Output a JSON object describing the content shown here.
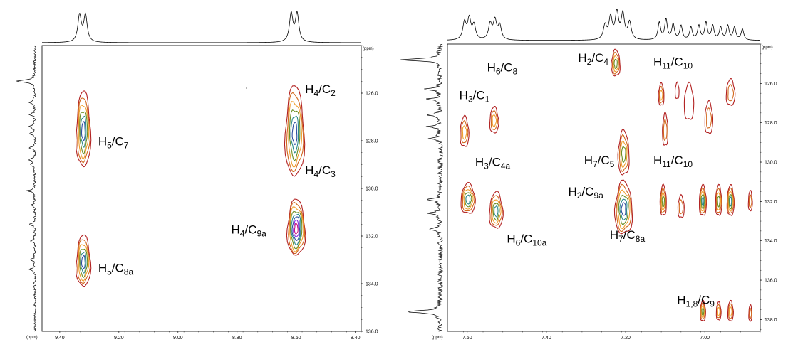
{
  "chart_data": [
    {
      "type": "contour",
      "unit_label": "(ppm)",
      "xlim": [
        9.46,
        8.38
      ],
      "ylim": [
        124.0,
        136.0
      ],
      "x_ticks": [
        {
          "v": 9.4,
          "label": "9.40"
        },
        {
          "v": 9.2,
          "label": "9.20"
        },
        {
          "v": 9.0,
          "label": "9.00"
        },
        {
          "v": 8.8,
          "label": "8.80"
        },
        {
          "v": 8.6,
          "label": "8.60"
        },
        {
          "v": 8.4,
          "label": "8.40"
        }
      ],
      "y_ticks": [
        {
          "v": 126,
          "label": "126.0"
        },
        {
          "v": 128,
          "label": "128.0"
        },
        {
          "v": 130,
          "label": "130.0"
        },
        {
          "v": 132,
          "label": "132.0"
        },
        {
          "v": 134,
          "label": "134.0"
        },
        {
          "v": 136,
          "label": "136.0"
        }
      ],
      "cross_peaks": [
        {
          "h": 9.32,
          "c": 127.6,
          "sh": 0.024,
          "sc": 1.55,
          "levels": 6
        },
        {
          "h": 9.32,
          "c": 133.1,
          "sh": 0.024,
          "sc": 1.05,
          "levels": 6
        },
        {
          "h": 8.605,
          "c": 127.7,
          "sh": 0.032,
          "sc": 1.85,
          "levels": 6
        },
        {
          "h": 8.6,
          "c": 131.7,
          "sh": 0.03,
          "sc": 1.15,
          "levels": 8
        }
      ],
      "labels": [
        {
          "main": "H",
          "s1": "5",
          "mid": "/C",
          "s2": "7",
          "h": 9.27,
          "c": 128.2
        },
        {
          "main": "H",
          "s1": "4",
          "mid": "/C",
          "s2": "2",
          "h": 8.57,
          "c": 126.0
        },
        {
          "main": "H",
          "s1": "4",
          "mid": "/C",
          "s2": "3",
          "h": 8.57,
          "c": 129.4
        },
        {
          "main": "H",
          "s1": "4",
          "mid": "/C",
          "s2": "9a",
          "h": 8.82,
          "c": 131.9
        },
        {
          "main": "H",
          "s1": "5",
          "mid": "/C",
          "s2": "8a",
          "h": 9.27,
          "c": 133.5
        }
      ],
      "top_projection": [
        {
          "x": 9.333,
          "h": 0.85,
          "w": 0.007
        },
        {
          "x": 9.313,
          "h": 0.85,
          "w": 0.007
        },
        {
          "x": 8.617,
          "h": 0.9,
          "w": 0.007
        },
        {
          "x": 8.597,
          "h": 0.9,
          "w": 0.007
        }
      ],
      "side_projection": [
        {
          "c": 125.5,
          "h": 0.9,
          "w": 0.06
        },
        {
          "c": 126.4,
          "h": 0.3,
          "w": 0.05
        },
        {
          "c": 126.9,
          "h": 0.25,
          "w": 0.05
        },
        {
          "c": 127.4,
          "h": 0.35,
          "w": 0.05
        },
        {
          "c": 127.7,
          "h": 0.3,
          "w": 0.05
        },
        {
          "c": 128.3,
          "h": 0.25,
          "w": 0.05
        },
        {
          "c": 128.8,
          "h": 0.3,
          "w": 0.05
        },
        {
          "c": 129.0,
          "h": 0.2,
          "w": 0.05
        },
        {
          "c": 130.1,
          "h": 0.35,
          "w": 0.06
        },
        {
          "c": 130.7,
          "h": 0.2,
          "w": 0.05
        },
        {
          "c": 131.5,
          "h": 0.25,
          "w": 0.05
        },
        {
          "c": 132.2,
          "h": 0.2,
          "w": 0.05
        },
        {
          "c": 133.0,
          "h": 0.25,
          "w": 0.05
        },
        {
          "c": 133.4,
          "h": 0.3,
          "w": 0.05
        }
      ]
    },
    {
      "type": "contour",
      "unit_label": "(ppm)",
      "xlim": [
        7.65,
        6.86
      ],
      "ylim": [
        124.0,
        138.6
      ],
      "x_ticks": [
        {
          "v": 7.6,
          "label": "7.60"
        },
        {
          "v": 7.4,
          "label": "7.40"
        },
        {
          "v": 7.2,
          "label": "7.20"
        },
        {
          "v": 7.0,
          "label": "7.00"
        }
      ],
      "y_ticks": [
        {
          "v": 126,
          "label": "126.0"
        },
        {
          "v": 128,
          "label": "128.0"
        },
        {
          "v": 130,
          "label": "130.0"
        },
        {
          "v": 132,
          "label": "132.0"
        },
        {
          "v": 134,
          "label": "134.0"
        },
        {
          "v": 136,
          "label": "136.0"
        },
        {
          "v": 138,
          "label": "138.0"
        }
      ],
      "cross_peaks": [
        {
          "h": 7.225,
          "c": 125.0,
          "sh": 0.011,
          "sc": 0.65,
          "levels": 4
        },
        {
          "h": 7.607,
          "c": 128.5,
          "sh": 0.011,
          "sc": 0.75,
          "levels": 3
        },
        {
          "h": 7.532,
          "c": 127.9,
          "sh": 0.011,
          "sc": 0.65,
          "levels": 3
        },
        {
          "h": 7.598,
          "c": 131.9,
          "sh": 0.018,
          "sc": 0.75,
          "levels": 5
        },
        {
          "h": 7.527,
          "c": 132.5,
          "sh": 0.017,
          "sc": 0.9,
          "levels": 5
        },
        {
          "h": 7.205,
          "c": 129.6,
          "sh": 0.014,
          "sc": 1.1,
          "levels": 4
        },
        {
          "h": 7.205,
          "c": 132.4,
          "sh": 0.022,
          "sc": 1.3,
          "levels": 6
        },
        {
          "h": 7.11,
          "c": 126.6,
          "sh": 0.007,
          "sc": 0.55,
          "levels": 3
        },
        {
          "h": 7.07,
          "c": 126.4,
          "sh": 0.005,
          "sc": 0.4,
          "levels": 1
        },
        {
          "h": 7.04,
          "c": 127.0,
          "sh": 0.012,
          "sc": 0.9,
          "levels": 1
        },
        {
          "h": 7.1,
          "c": 128.4,
          "sh": 0.007,
          "sc": 0.8,
          "levels": 2
        },
        {
          "h": 6.99,
          "c": 127.8,
          "sh": 0.01,
          "sc": 0.8,
          "levels": 2
        },
        {
          "h": 6.935,
          "c": 126.5,
          "sh": 0.011,
          "sc": 0.65,
          "levels": 2
        },
        {
          "h": 7.105,
          "c": 132.0,
          "sh": 0.008,
          "sc": 0.75,
          "levels": 4
        },
        {
          "h": 7.06,
          "c": 132.3,
          "sh": 0.008,
          "sc": 0.55,
          "levels": 2
        },
        {
          "h": 7.005,
          "c": 132.0,
          "sh": 0.009,
          "sc": 0.75,
          "levels": 5
        },
        {
          "h": 6.965,
          "c": 132.0,
          "sh": 0.008,
          "sc": 0.75,
          "levels": 4
        },
        {
          "h": 6.935,
          "c": 132.0,
          "sh": 0.009,
          "sc": 0.75,
          "levels": 5
        },
        {
          "h": 6.885,
          "c": 132.0,
          "sh": 0.005,
          "sc": 0.5,
          "levels": 2
        },
        {
          "h": 7.005,
          "c": 137.6,
          "sh": 0.007,
          "sc": 0.5,
          "levels": 4
        },
        {
          "h": 6.965,
          "c": 137.6,
          "sh": 0.006,
          "sc": 0.45,
          "levels": 3
        },
        {
          "h": 6.935,
          "c": 137.6,
          "sh": 0.007,
          "sc": 0.5,
          "levels": 3
        },
        {
          "h": 6.885,
          "c": 137.7,
          "sh": 0.004,
          "sc": 0.4,
          "levels": 2
        }
      ],
      "labels": [
        {
          "main": "H",
          "s1": "2",
          "mid": "/C",
          "s2": "4",
          "h": 7.32,
          "c": 124.9
        },
        {
          "main": "H",
          "s1": "11",
          "mid": "/C",
          "s2": "10",
          "h": 7.13,
          "c": 125.1
        },
        {
          "main": "H",
          "s1": "6",
          "mid": "/C",
          "s2": "8",
          "h": 7.55,
          "c": 125.4
        },
        {
          "main": "H",
          "s1": "3",
          "mid": "/C",
          "s2": "1",
          "h": 7.62,
          "c": 126.8
        },
        {
          "main": "H",
          "s1": "3",
          "mid": "/C",
          "s2": "4a",
          "h": 7.58,
          "c": 130.2
        },
        {
          "main": "H",
          "s1": "7",
          "mid": "/C",
          "s2": "5",
          "h": 7.305,
          "c": 130.1
        },
        {
          "main": "H",
          "s1": "11",
          "mid": "/C",
          "s2": "10",
          "h": 7.13,
          "c": 130.1
        },
        {
          "main": "H",
          "s1": "2",
          "mid": "/C",
          "s2": "9a",
          "h": 7.345,
          "c": 131.7
        },
        {
          "main": "H",
          "s1": "6",
          "mid": "/C",
          "s2": "10a",
          "h": 7.5,
          "c": 134.1
        },
        {
          "main": "H",
          "s1": "7",
          "mid": "/C",
          "s2": "8a",
          "h": 7.24,
          "c": 133.9
        },
        {
          "main": "H",
          "s1": "1,8",
          "mid": "/C",
          "s2": "9",
          "h": 7.07,
          "c": 137.2
        }
      ],
      "top_projection": [
        {
          "x": 7.607,
          "h": 0.55,
          "w": 0.005
        },
        {
          "x": 7.595,
          "h": 0.65,
          "w": 0.005
        },
        {
          "x": 7.583,
          "h": 0.45,
          "w": 0.005
        },
        {
          "x": 7.542,
          "h": 0.5,
          "w": 0.005
        },
        {
          "x": 7.53,
          "h": 0.6,
          "w": 0.005
        },
        {
          "x": 7.518,
          "h": 0.45,
          "w": 0.005
        },
        {
          "x": 7.252,
          "h": 0.45,
          "w": 0.005
        },
        {
          "x": 7.238,
          "h": 0.7,
          "w": 0.005
        },
        {
          "x": 7.222,
          "h": 0.85,
          "w": 0.005
        },
        {
          "x": 7.207,
          "h": 0.8,
          "w": 0.005
        },
        {
          "x": 7.19,
          "h": 0.55,
          "w": 0.005
        },
        {
          "x": 7.115,
          "h": 0.55,
          "w": 0.004
        },
        {
          "x": 7.098,
          "h": 0.65,
          "w": 0.004
        },
        {
          "x": 7.08,
          "h": 0.5,
          "w": 0.004
        },
        {
          "x": 7.06,
          "h": 0.45,
          "w": 0.004
        },
        {
          "x": 7.035,
          "h": 0.4,
          "w": 0.004
        },
        {
          "x": 7.015,
          "h": 0.45,
          "w": 0.004
        },
        {
          "x": 6.997,
          "h": 0.55,
          "w": 0.004
        },
        {
          "x": 6.98,
          "h": 0.45,
          "w": 0.004
        },
        {
          "x": 6.96,
          "h": 0.4,
          "w": 0.004
        },
        {
          "x": 6.942,
          "h": 0.45,
          "w": 0.004
        },
        {
          "x": 6.925,
          "h": 0.4,
          "w": 0.004
        },
        {
          "x": 6.905,
          "h": 0.35,
          "w": 0.004
        }
      ],
      "side_projection": [
        {
          "c": 124.8,
          "h": 0.9,
          "w": 0.07
        },
        {
          "c": 126.3,
          "h": 0.35,
          "w": 0.06
        },
        {
          "c": 126.8,
          "h": 0.3,
          "w": 0.06
        },
        {
          "c": 127.6,
          "h": 0.3,
          "w": 0.06
        },
        {
          "c": 128.2,
          "h": 0.3,
          "w": 0.06
        },
        {
          "c": 128.8,
          "h": 0.25,
          "w": 0.06
        },
        {
          "c": 131.9,
          "h": 0.35,
          "w": 0.06
        },
        {
          "c": 132.6,
          "h": 0.3,
          "w": 0.06
        },
        {
          "c": 133.4,
          "h": 0.25,
          "w": 0.06
        },
        {
          "c": 137.6,
          "h": 0.8,
          "w": 0.07
        }
      ]
    }
  ],
  "colors": {
    "contour_levels": [
      "#b22222",
      "#d2691e",
      "#f0a030",
      "#6b8e23",
      "#2e8b8b",
      "#2f4fa0",
      "#8a2be2",
      "#c71585"
    ],
    "axis": "#000000"
  }
}
